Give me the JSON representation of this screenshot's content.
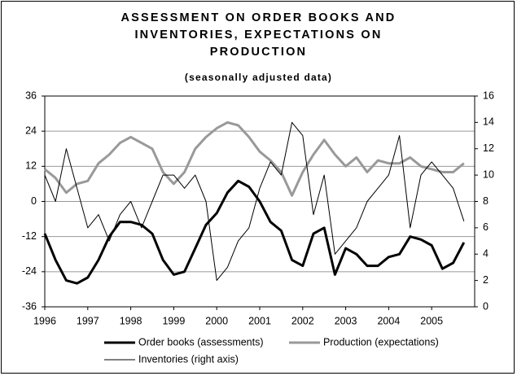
{
  "chart_data": {
    "type": "line",
    "title": "ASSESSMENT ON ORDER BOOKS AND INVENTORIES, EXPECTATIONS ON PRODUCTION",
    "subtitle": "(seasonally adjusted data)",
    "x": [
      1996,
      1996.25,
      1996.5,
      1996.75,
      1997,
      1997.25,
      1997.5,
      1997.75,
      1998,
      1998.25,
      1998.5,
      1998.75,
      1999,
      1999.25,
      1999.5,
      1999.75,
      2000,
      2000.25,
      2000.5,
      2000.75,
      2001,
      2001.25,
      2001.5,
      2001.75,
      2002,
      2002.25,
      2002.5,
      2002.75,
      2003,
      2003.25,
      2003.5,
      2003.75,
      2004,
      2004.25,
      2004.5,
      2004.75,
      2005,
      2005.25,
      2005.5,
      2005.75
    ],
    "xlim": [
      1996,
      2006
    ],
    "xticks": [
      1996,
      1997,
      1998,
      1999,
      2000,
      2001,
      2002,
      2003,
      2004,
      2005
    ],
    "ylim": [
      -36,
      36
    ],
    "yticks": [
      -36,
      -24,
      -12,
      0,
      12,
      24,
      36
    ],
    "y2lim": [
      0,
      16
    ],
    "y2ticks": [
      0,
      2,
      4,
      6,
      8,
      10,
      12,
      14,
      16
    ],
    "grid": true,
    "legend": "bottom",
    "series": [
      {
        "name": "Order books (assessments)",
        "color": "#000000",
        "values": [
          -11,
          -20,
          -27,
          -28,
          -26,
          -20,
          -12,
          -7,
          -7,
          -8,
          -11,
          -20,
          -25,
          -24,
          -16,
          -8,
          -4,
          3,
          7,
          5,
          0,
          -7,
          -10,
          -20,
          -22,
          -11,
          -9,
          -25,
          -16,
          -18,
          -22,
          -22,
          -19,
          -18,
          -12,
          -13,
          -15,
          -23,
          -21,
          -14
        ]
      },
      {
        "name": "Production (expectations)",
        "color": "#999999",
        "values": [
          11,
          8,
          3,
          6,
          7,
          13,
          16,
          20,
          22,
          20,
          18,
          10,
          6,
          10,
          18,
          22,
          25,
          27,
          26,
          22,
          17,
          14,
          10,
          2,
          10,
          16,
          21,
          16,
          12,
          15,
          10,
          14,
          13,
          13,
          15,
          12,
          11,
          10,
          10,
          13
        ]
      },
      {
        "name": "Inventories (right axis)",
        "color": "#000000",
        "axis": "y2",
        "values": [
          10,
          8,
          12,
          9,
          6,
          7,
          5,
          7,
          8,
          6,
          8,
          10,
          10,
          9,
          10,
          8,
          2,
          3,
          5,
          6,
          9,
          11,
          10,
          14,
          13,
          7,
          10,
          4,
          5,
          6,
          8,
          9,
          10,
          13,
          6,
          10,
          11,
          10,
          9,
          6.5
        ]
      }
    ]
  }
}
